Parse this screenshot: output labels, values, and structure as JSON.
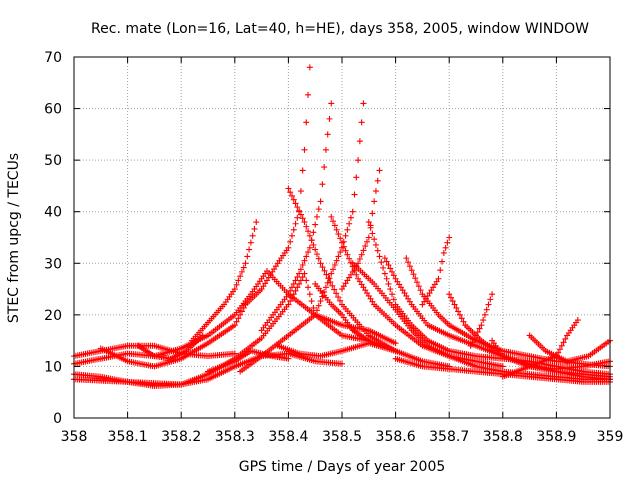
{
  "chart_data": {
    "type": "scatter",
    "title": "Rec. mate (Lon=16, Lat=40, h=HE), days 358, 2005, window WINDOW",
    "xlabel": "GPS time / Days of year 2005",
    "ylabel": "STEC from upcg / TECUs",
    "xlim": [
      358,
      359
    ],
    "ylim": [
      0,
      70
    ],
    "x_ticks": [
      "358",
      "358.1",
      "358.2",
      "358.3",
      "358.4",
      "358.5",
      "358.6",
      "358.7",
      "358.8",
      "358.9",
      "359"
    ],
    "y_ticks": [
      "0",
      "10",
      "20",
      "30",
      "40",
      "50",
      "60",
      "70"
    ],
    "grid": true,
    "marker": "+",
    "series_color": "#ff0000",
    "tracks": [
      [
        [
          358.0,
          8.5
        ],
        [
          358.05,
          8.0
        ],
        [
          358.1,
          7.0
        ],
        [
          358.15,
          6.2
        ],
        [
          358.2,
          6.5
        ],
        [
          358.25,
          8.5
        ],
        [
          358.3,
          11.5
        ],
        [
          358.35,
          15.5
        ],
        [
          358.4,
          22.0
        ],
        [
          358.43,
          28.0
        ],
        [
          358.45,
          20.0
        ],
        [
          358.5,
          16.0
        ],
        [
          358.55,
          15.0
        ],
        [
          358.6,
          13.0
        ]
      ],
      [
        [
          358.0,
          10.5
        ],
        [
          358.05,
          11.5
        ],
        [
          358.1,
          12.5
        ],
        [
          358.15,
          12.0
        ],
        [
          358.2,
          13.5
        ],
        [
          358.25,
          16.0
        ],
        [
          358.3,
          20.0
        ],
        [
          358.33,
          24.0
        ],
        [
          358.36,
          28.5
        ],
        [
          358.4,
          24.0
        ],
        [
          358.45,
          20.0
        ],
        [
          358.5,
          18.0
        ],
        [
          358.55,
          17.0
        ],
        [
          358.6,
          14.5
        ]
      ],
      [
        [
          358.0,
          12.0
        ],
        [
          358.05,
          13.0
        ],
        [
          358.1,
          14.0
        ],
        [
          358.15,
          14.0
        ],
        [
          358.2,
          12.5
        ],
        [
          358.25,
          12.0
        ],
        [
          358.3,
          12.5
        ]
      ],
      [
        [
          358.0,
          7.5
        ],
        [
          358.1,
          7.0
        ],
        [
          358.2,
          6.5
        ],
        [
          358.25,
          7.5
        ],
        [
          358.3,
          10.0
        ],
        [
          358.35,
          12.0
        ],
        [
          358.4,
          12.5
        ],
        [
          358.45,
          11.0
        ],
        [
          358.5,
          10.5
        ]
      ],
      [
        [
          358.05,
          13.5
        ],
        [
          358.1,
          11.0
        ],
        [
          358.15,
          10.0
        ],
        [
          358.2,
          11.5
        ],
        [
          358.25,
          14.5
        ],
        [
          358.3,
          18.0
        ],
        [
          358.32,
          22.0
        ],
        [
          358.35,
          25.0
        ],
        [
          358.38,
          30.0
        ],
        [
          358.4,
          33.0
        ],
        [
          358.42,
          40.0
        ],
        [
          358.43,
          52.0
        ],
        [
          358.44,
          68.0
        ]
      ],
      [
        [
          358.12,
          14.0
        ],
        [
          358.15,
          12.0
        ],
        [
          358.18,
          11.5
        ],
        [
          358.21,
          13.0
        ],
        [
          358.24,
          16.0
        ]
      ],
      [
        [
          358.22,
          15.0
        ],
        [
          358.25,
          18.5
        ],
        [
          358.28,
          22.0
        ],
        [
          358.3,
          25.0
        ],
        [
          358.32,
          30.0
        ],
        [
          358.33,
          34.0
        ],
        [
          358.34,
          38.0
        ]
      ],
      [
        [
          358.31,
          9.0
        ],
        [
          358.35,
          12.0
        ],
        [
          358.4,
          16.0
        ],
        [
          358.45,
          20.0
        ],
        [
          358.48,
          28.0
        ],
        [
          358.5,
          33.0
        ],
        [
          358.52,
          40.0
        ],
        [
          358.53,
          50.0
        ],
        [
          358.54,
          61.0
        ]
      ],
      [
        [
          358.35,
          17.0
        ],
        [
          358.4,
          24.0
        ],
        [
          358.42,
          28.0
        ],
        [
          358.44,
          33.0
        ],
        [
          358.46,
          42.0
        ],
        [
          358.47,
          52.0
        ],
        [
          358.48,
          61.0
        ]
      ],
      [
        [
          358.4,
          44.5
        ],
        [
          358.43,
          38.0
        ],
        [
          358.46,
          30.0
        ],
        [
          358.5,
          22.0
        ],
        [
          358.55,
          16.0
        ],
        [
          358.6,
          13.0
        ],
        [
          358.65,
          11.0
        ],
        [
          358.7,
          10.0
        ]
      ],
      [
        [
          358.45,
          26.0
        ],
        [
          358.48,
          22.0
        ],
        [
          358.5,
          20.0
        ],
        [
          358.52,
          17.0
        ],
        [
          358.55,
          15.0
        ]
      ],
      [
        [
          358.48,
          39.0
        ],
        [
          358.5,
          34.0
        ],
        [
          358.53,
          27.0
        ],
        [
          358.56,
          22.0
        ],
        [
          358.6,
          18.0
        ],
        [
          358.65,
          14.0
        ],
        [
          358.7,
          12.0
        ],
        [
          358.75,
          11.0
        ],
        [
          358.8,
          10.0
        ]
      ],
      [
        [
          358.5,
          25.0
        ],
        [
          358.53,
          30.0
        ],
        [
          358.55,
          35.0
        ],
        [
          358.56,
          42.0
        ],
        [
          358.57,
          48.0
        ]
      ],
      [
        [
          358.52,
          30.0
        ],
        [
          358.56,
          26.0
        ],
        [
          358.6,
          21.0
        ],
        [
          358.63,
          17.0
        ],
        [
          358.66,
          14.0
        ],
        [
          358.7,
          12.0
        ],
        [
          358.75,
          10.0
        ],
        [
          358.8,
          9.0
        ],
        [
          358.85,
          8.5
        ],
        [
          358.9,
          8.0
        ],
        [
          358.95,
          7.5
        ],
        [
          359.0,
          7.5
        ]
      ],
      [
        [
          358.55,
          38.0
        ],
        [
          358.58,
          28.0
        ],
        [
          358.6,
          22.0
        ],
        [
          358.63,
          18.0
        ],
        [
          358.66,
          15.0
        ],
        [
          358.7,
          13.0
        ],
        [
          358.75,
          12.0
        ],
        [
          358.8,
          11.5
        ],
        [
          358.85,
          11.0
        ],
        [
          358.9,
          10.0
        ],
        [
          358.95,
          9.0
        ],
        [
          359.0,
          8.5
        ]
      ],
      [
        [
          358.58,
          31.0
        ],
        [
          358.6,
          27.0
        ],
        [
          358.63,
          22.0
        ],
        [
          358.66,
          18.0
        ],
        [
          358.7,
          16.0
        ],
        [
          358.75,
          14.0
        ],
        [
          358.8,
          12.0
        ],
        [
          358.85,
          10.5
        ],
        [
          358.9,
          9.0
        ],
        [
          358.95,
          8.0
        ],
        [
          359.0,
          7.5
        ]
      ],
      [
        [
          358.62,
          31.0
        ],
        [
          358.65,
          24.0
        ],
        [
          358.68,
          20.0
        ],
        [
          358.7,
          18.0
        ],
        [
          358.75,
          15.0
        ],
        [
          358.8,
          13.0
        ],
        [
          358.85,
          12.0
        ],
        [
          358.9,
          11.0
        ],
        [
          358.95,
          10.5
        ],
        [
          359.0,
          10.0
        ]
      ],
      [
        [
          358.65,
          22.0
        ],
        [
          358.68,
          27.0
        ],
        [
          358.69,
          32.0
        ],
        [
          358.7,
          35.0
        ]
      ],
      [
        [
          358.7,
          24.0
        ],
        [
          358.73,
          18.0
        ],
        [
          358.76,
          15.0
        ],
        [
          358.8,
          12.0
        ],
        [
          358.85,
          10.0
        ],
        [
          358.9,
          9.0
        ],
        [
          358.95,
          8.5
        ],
        [
          359.0,
          8.0
        ]
      ],
      [
        [
          358.74,
          14.0
        ],
        [
          358.76,
          18.0
        ],
        [
          358.77,
          21.0
        ],
        [
          358.78,
          24.0
        ]
      ],
      [
        [
          358.78,
          15.0
        ],
        [
          358.8,
          12.0
        ],
        [
          358.85,
          10.0
        ],
        [
          358.9,
          9.5
        ],
        [
          358.95,
          10.0
        ],
        [
          359.0,
          11.0
        ]
      ],
      [
        [
          358.8,
          8.0
        ],
        [
          358.85,
          10.0
        ],
        [
          358.9,
          12.0
        ],
        [
          358.92,
          16.0
        ],
        [
          358.94,
          19.0
        ]
      ],
      [
        [
          358.85,
          16.0
        ],
        [
          358.88,
          13.0
        ],
        [
          358.92,
          11.0
        ],
        [
          358.96,
          12.0
        ],
        [
          359.0,
          15.0
        ]
      ],
      [
        [
          358.6,
          11.5
        ],
        [
          358.65,
          10.0
        ],
        [
          358.7,
          9.5
        ],
        [
          358.75,
          9.0
        ],
        [
          358.8,
          8.5
        ],
        [
          358.85,
          8.0
        ],
        [
          358.9,
          7.5
        ],
        [
          358.95,
          7.0
        ],
        [
          359.0,
          7.0
        ]
      ],
      [
        [
          358.38,
          14.0
        ],
        [
          358.42,
          12.5
        ],
        [
          358.46,
          12.0
        ],
        [
          358.5,
          13.0
        ],
        [
          358.55,
          14.5
        ],
        [
          358.6,
          13.0
        ]
      ],
      [
        [
          358.25,
          9.0
        ],
        [
          358.3,
          11.0
        ],
        [
          358.33,
          13.0
        ],
        [
          358.37,
          12.0
        ],
        [
          358.4,
          11.5
        ]
      ]
    ]
  }
}
